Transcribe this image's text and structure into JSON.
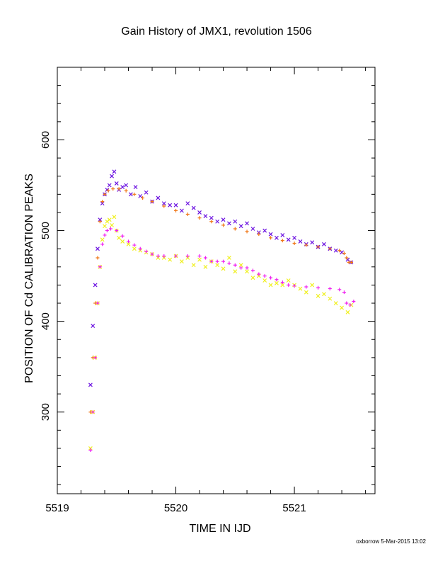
{
  "title": "Gain History of JMX1, revolution 1506",
  "footer": "oxborrow  5-Mar-2015 13:02",
  "chart_data": {
    "type": "scatter",
    "title": "Gain History of JMX1, revolution 1506",
    "xlabel": "TIME IN IJD",
    "ylabel": "POSITION OF Cd CALIBRATION PEAKS",
    "xlim": [
      5519.0,
      5521.68
    ],
    "ylim": [
      210,
      680
    ],
    "xticks": [
      5519,
      5520,
      5521
    ],
    "xtick_labels": [
      "5519",
      "5520",
      "5521"
    ],
    "yticks": [
      300,
      400,
      500,
      600
    ],
    "ytick_labels": [
      "300",
      "400",
      "500",
      "600"
    ],
    "grid": false,
    "series": [
      {
        "color": "#6a10e0",
        "marker": "x",
        "points": [
          [
            5519.28,
            330
          ],
          [
            5519.3,
            395
          ],
          [
            5519.32,
            440
          ],
          [
            5519.34,
            480
          ],
          [
            5519.36,
            512
          ],
          [
            5519.38,
            530
          ],
          [
            5519.4,
            540
          ],
          [
            5519.42,
            545
          ],
          [
            5519.44,
            550
          ],
          [
            5519.46,
            560
          ],
          [
            5519.48,
            565
          ],
          [
            5519.5,
            552
          ],
          [
            5519.52,
            545
          ],
          [
            5519.55,
            548
          ],
          [
            5519.58,
            550
          ],
          [
            5519.62,
            540
          ],
          [
            5519.66,
            548
          ],
          [
            5519.7,
            538
          ],
          [
            5519.75,
            542
          ],
          [
            5519.8,
            532
          ],
          [
            5519.85,
            536
          ],
          [
            5519.9,
            530
          ],
          [
            5519.95,
            528
          ],
          [
            5520.0,
            528
          ],
          [
            5520.05,
            522
          ],
          [
            5520.1,
            530
          ],
          [
            5520.15,
            525
          ],
          [
            5520.2,
            520
          ],
          [
            5520.25,
            516
          ],
          [
            5520.3,
            514
          ],
          [
            5520.35,
            510
          ],
          [
            5520.4,
            512
          ],
          [
            5520.45,
            508
          ],
          [
            5520.5,
            510
          ],
          [
            5520.55,
            505
          ],
          [
            5520.6,
            508
          ],
          [
            5520.65,
            502
          ],
          [
            5520.7,
            498
          ],
          [
            5520.75,
            500
          ],
          [
            5520.8,
            496
          ],
          [
            5520.85,
            492
          ],
          [
            5520.9,
            495
          ],
          [
            5520.95,
            490
          ],
          [
            5521.0,
            492
          ],
          [
            5521.05,
            488
          ],
          [
            5521.1,
            485
          ],
          [
            5521.15,
            487
          ],
          [
            5521.2,
            482
          ],
          [
            5521.25,
            485
          ],
          [
            5521.3,
            480
          ],
          [
            5521.35,
            478
          ],
          [
            5521.4,
            476
          ],
          [
            5521.45,
            468
          ],
          [
            5521.48,
            465
          ]
        ]
      },
      {
        "color": "#f07818",
        "marker": "+",
        "points": [
          [
            5519.28,
            300
          ],
          [
            5519.3,
            360
          ],
          [
            5519.32,
            420
          ],
          [
            5519.34,
            470
          ],
          [
            5519.36,
            510
          ],
          [
            5519.38,
            532
          ],
          [
            5519.4,
            540
          ],
          [
            5519.43,
            544
          ],
          [
            5519.47,
            546
          ],
          [
            5519.52,
            546
          ],
          [
            5519.58,
            544
          ],
          [
            5519.65,
            540
          ],
          [
            5519.72,
            536
          ],
          [
            5519.8,
            532
          ],
          [
            5519.9,
            527
          ],
          [
            5520.0,
            522
          ],
          [
            5520.1,
            518
          ],
          [
            5520.2,
            514
          ],
          [
            5520.3,
            510
          ],
          [
            5520.4,
            506
          ],
          [
            5520.5,
            502
          ],
          [
            5520.6,
            499
          ],
          [
            5520.7,
            496
          ],
          [
            5520.8,
            492
          ],
          [
            5520.9,
            489
          ],
          [
            5521.0,
            486
          ],
          [
            5521.1,
            484
          ],
          [
            5521.2,
            482
          ],
          [
            5521.3,
            480
          ],
          [
            5521.38,
            478
          ],
          [
            5521.42,
            475
          ],
          [
            5521.44,
            470
          ],
          [
            5521.46,
            465
          ],
          [
            5521.48,
            465
          ]
        ]
      },
      {
        "color": "#f0f020",
        "marker": "x",
        "points": [
          [
            5519.28,
            260
          ],
          [
            5519.3,
            300
          ],
          [
            5519.32,
            360
          ],
          [
            5519.34,
            420
          ],
          [
            5519.36,
            460
          ],
          [
            5519.38,
            490
          ],
          [
            5519.4,
            505
          ],
          [
            5519.42,
            510
          ],
          [
            5519.44,
            512
          ],
          [
            5519.46,
            506
          ],
          [
            5519.48,
            515
          ],
          [
            5519.5,
            500
          ],
          [
            5519.52,
            492
          ],
          [
            5519.55,
            488
          ],
          [
            5519.6,
            485
          ],
          [
            5519.65,
            480
          ],
          [
            5519.7,
            478
          ],
          [
            5519.75,
            476
          ],
          [
            5519.8,
            474
          ],
          [
            5519.85,
            470
          ],
          [
            5519.9,
            470
          ],
          [
            5519.95,
            468
          ],
          [
            5520.0,
            472
          ],
          [
            5520.05,
            466
          ],
          [
            5520.1,
            470
          ],
          [
            5520.15,
            462
          ],
          [
            5520.2,
            468
          ],
          [
            5520.25,
            460
          ],
          [
            5520.3,
            466
          ],
          [
            5520.35,
            462
          ],
          [
            5520.4,
            458
          ],
          [
            5520.45,
            470
          ],
          [
            5520.5,
            455
          ],
          [
            5520.55,
            462
          ],
          [
            5520.6,
            455
          ],
          [
            5520.65,
            448
          ],
          [
            5520.7,
            450
          ],
          [
            5520.75,
            445
          ],
          [
            5520.8,
            440
          ],
          [
            5520.85,
            442
          ],
          [
            5520.9,
            440
          ],
          [
            5520.95,
            445
          ],
          [
            5521.0,
            440
          ],
          [
            5521.05,
            436
          ],
          [
            5521.1,
            432
          ],
          [
            5521.15,
            440
          ],
          [
            5521.2,
            428
          ],
          [
            5521.25,
            430
          ],
          [
            5521.3,
            425
          ],
          [
            5521.35,
            420
          ],
          [
            5521.4,
            415
          ],
          [
            5521.45,
            410
          ],
          [
            5521.48,
            418
          ]
        ]
      },
      {
        "color": "#f020f0",
        "marker": "+",
        "points": [
          [
            5519.28,
            258
          ],
          [
            5519.3,
            300
          ],
          [
            5519.32,
            360
          ],
          [
            5519.34,
            420
          ],
          [
            5519.36,
            460
          ],
          [
            5519.38,
            485
          ],
          [
            5519.4,
            495
          ],
          [
            5519.42,
            500
          ],
          [
            5519.45,
            502
          ],
          [
            5519.5,
            500
          ],
          [
            5519.55,
            494
          ],
          [
            5519.6,
            488
          ],
          [
            5519.65,
            484
          ],
          [
            5519.7,
            480
          ],
          [
            5519.75,
            477
          ],
          [
            5519.8,
            474
          ],
          [
            5519.85,
            472
          ],
          [
            5519.9,
            472
          ],
          [
            5520.0,
            472
          ],
          [
            5520.1,
            472
          ],
          [
            5520.2,
            472
          ],
          [
            5520.25,
            470
          ],
          [
            5520.3,
            466
          ],
          [
            5520.35,
            466
          ],
          [
            5520.4,
            466
          ],
          [
            5520.45,
            464
          ],
          [
            5520.5,
            462
          ],
          [
            5520.55,
            459
          ],
          [
            5520.6,
            459
          ],
          [
            5520.65,
            456
          ],
          [
            5520.7,
            452
          ],
          [
            5520.75,
            450
          ],
          [
            5520.8,
            448
          ],
          [
            5520.85,
            446
          ],
          [
            5520.9,
            443
          ],
          [
            5520.95,
            440
          ],
          [
            5521.0,
            439
          ],
          [
            5521.1,
            438
          ],
          [
            5521.2,
            437
          ],
          [
            5521.3,
            436
          ],
          [
            5521.38,
            435
          ],
          [
            5521.42,
            432
          ],
          [
            5521.44,
            420
          ],
          [
            5521.47,
            418
          ],
          [
            5521.5,
            422
          ]
        ]
      }
    ]
  }
}
